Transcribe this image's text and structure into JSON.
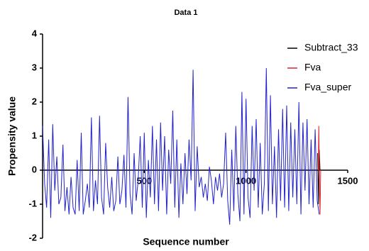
{
  "chart_data": {
    "type": "line",
    "title": "Data 1",
    "xlabel": "Sequence number",
    "ylabel": "Propensity value",
    "xlim": [
      0,
      1500
    ],
    "ylim": [
      -2,
      4
    ],
    "xticks": [
      500,
      1000,
      1500
    ],
    "yticks": [
      -2,
      -1,
      0,
      1,
      2,
      3,
      4
    ],
    "legend": "top-right",
    "series": [
      {
        "name": "Subtract_33",
        "color": "#000000",
        "x": [
          1352,
          1356,
          1360,
          1364
        ],
        "values": [
          0.5,
          -1.0,
          0.6,
          0
        ]
      },
      {
        "name": "Fva",
        "color": "#e0202a",
        "x": [
          1355,
          1358,
          1361,
          1364,
          1367
        ],
        "values": [
          0,
          1.3,
          -0.5,
          -1.3,
          0
        ]
      },
      {
        "name": "Fva_super",
        "color": "#2222cc",
        "x": [
          0,
          10,
          20,
          30,
          40,
          50,
          60,
          70,
          80,
          90,
          100,
          110,
          120,
          130,
          140,
          150,
          160,
          170,
          180,
          190,
          200,
          210,
          220,
          230,
          240,
          250,
          260,
          270,
          280,
          290,
          300,
          310,
          320,
          330,
          340,
          350,
          360,
          370,
          380,
          390,
          400,
          410,
          420,
          430,
          440,
          450,
          460,
          470,
          480,
          490,
          500,
          510,
          520,
          530,
          540,
          550,
          560,
          570,
          580,
          590,
          600,
          610,
          620,
          630,
          640,
          650,
          660,
          670,
          680,
          690,
          700,
          710,
          720,
          730,
          740,
          750,
          760,
          770,
          780,
          790,
          800,
          810,
          820,
          830,
          840,
          850,
          860,
          870,
          880,
          890,
          900,
          910,
          920,
          930,
          940,
          950,
          960,
          970,
          980,
          990,
          1000,
          1010,
          1020,
          1030,
          1040,
          1050,
          1060,
          1070,
          1080,
          1090,
          1100,
          1110,
          1120,
          1130,
          1140,
          1150,
          1160,
          1170,
          1180,
          1190,
          1200,
          1210,
          1220,
          1230,
          1240,
          1250,
          1260,
          1270,
          1280,
          1290,
          1300,
          1310,
          1320,
          1330,
          1340,
          1350,
          1360
        ],
        "values": [
          1.3,
          -0.4,
          -1.1,
          0.9,
          -1.4,
          1.35,
          -0.6,
          0.4,
          -1.0,
          -0.8,
          0.75,
          -1.2,
          -0.5,
          -1.3,
          -0.2,
          -1.1,
          -1.3,
          0.3,
          -1.2,
          1.1,
          -1.3,
          -0.9,
          -0.4,
          -1.1,
          1.55,
          -1.2,
          -0.3,
          -1.0,
          1.6,
          -0.8,
          -1.3,
          0.8,
          -0.5,
          -1.1,
          -0.2,
          -1.2,
          -0.9,
          0.4,
          -1.0,
          -0.6,
          0.45,
          -1.1,
          2.15,
          -0.7,
          -1.3,
          0.5,
          -0.9,
          -0.3,
          1.0,
          -1.1,
          1.1,
          -1.4,
          0.3,
          -0.8,
          1.3,
          -1.0,
          0.9,
          -1.2,
          1.4,
          -0.6,
          1.0,
          -1.3,
          0.6,
          -0.4,
          1.75,
          -1.1,
          0.9,
          -1.4,
          0.2,
          -1.0,
          0.5,
          -0.7,
          0.9,
          -0.3,
          2.95,
          -1.2,
          0.7,
          -0.5,
          -0.2,
          -0.8,
          -0.4,
          -0.9,
          0.1,
          -0.3,
          -1.0,
          -0.2,
          -0.6,
          -0.1,
          -0.8,
          -0.4,
          1.1,
          -0.9,
          -1.6,
          0.6,
          -1.2,
          1.3,
          -0.7,
          -1.5,
          2.3,
          -1.3,
          2.1,
          -0.8,
          -1.4,
          1.3,
          -0.6,
          1.5,
          -1.1,
          0.8,
          -1.3,
          -0.4,
          3.0,
          -1.2,
          2.2,
          -1.0,
          0.7,
          -1.4,
          1.2,
          -0.9,
          1.8,
          -1.1,
          1.9,
          -1.2,
          1.4,
          -0.8,
          1.2,
          -1.0,
          2.0,
          -1.3,
          1.4,
          -0.6,
          1.5,
          -1.0,
          0.9,
          -1.1,
          1.2,
          -0.9,
          -1.3
        ]
      }
    ]
  }
}
